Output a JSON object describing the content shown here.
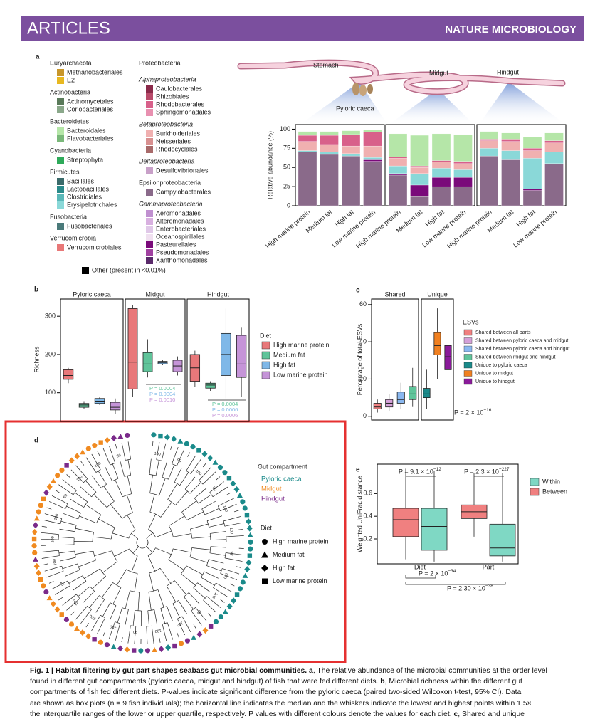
{
  "header": {
    "left": "ARTICLES",
    "right": "NATURE MICROBIOLOGY"
  },
  "panel_letters": [
    "a",
    "b",
    "c",
    "d",
    "e"
  ],
  "panel_a": {
    "diagram_labels": [
      "Stomach",
      "Pyloric caeca",
      "Midgut",
      "Hindgut"
    ],
    "legend": {
      "columns": [
        [
          {
            "name": "Euryarchaeota",
            "italic": false,
            "items": [
              {
                "name": "Methanobacteriales",
                "color": "#c8962a"
              },
              {
                "name": "E2",
                "color": "#e8b820"
              }
            ]
          },
          {
            "name": "Actinobacteria",
            "italic": false,
            "items": [
              {
                "name": "Actinomycetales",
                "color": "#5a7a5a"
              },
              {
                "name": "Coriobacteriales",
                "color": "#8aa88a"
              }
            ]
          },
          {
            "name": "Bacteroidetes",
            "italic": false,
            "items": [
              {
                "name": "Bacteroidales",
                "color": "#b5e6a8"
              },
              {
                "name": "Flavobacteriales",
                "color": "#7ab87a"
              }
            ]
          },
          {
            "name": "Cyanobacteria",
            "italic": false,
            "items": [
              {
                "name": "Streptophyta",
                "color": "#2eaa5a"
              }
            ]
          },
          {
            "name": "Firmicutes",
            "italic": false,
            "items": [
              {
                "name": "Bacillales",
                "color": "#3a6a6a"
              },
              {
                "name": "Lactobacillales",
                "color": "#2a8a8a"
              },
              {
                "name": "Clostridiales",
                "color": "#5ab8b8"
              },
              {
                "name": "Erysipelotrichales",
                "color": "#8ad8d8"
              }
            ]
          },
          {
            "name": "Fusobacteria",
            "italic": false,
            "items": [
              {
                "name": "Fusobacteriales",
                "color": "#4a7a7a"
              }
            ]
          },
          {
            "name": "Verrucomicrobia",
            "italic": false,
            "items": [
              {
                "name": "Verrucomicrobiales",
                "color": "#e87878"
              }
            ]
          }
        ],
        [
          {
            "name": "Proteobacteria",
            "italic": false,
            "items": []
          },
          {
            "name": "Alphaproteobacteria",
            "italic": true,
            "items": [
              {
                "name": "Caulobacterales",
                "color": "#8a2a4a"
              },
              {
                "name": "Rhizobiales",
                "color": "#b84a6a"
              },
              {
                "name": "Rhodobacterales",
                "color": "#d8608a"
              },
              {
                "name": "Sphingomonadales",
                "color": "#e890b0"
              }
            ]
          },
          {
            "name": "Betaproteobacteria",
            "italic": true,
            "items": [
              {
                "name": "Burkholderiales",
                "color": "#f0b0b0"
              },
              {
                "name": "Neisseriales",
                "color": "#d89090"
              },
              {
                "name": "Rhodocyclales",
                "color": "#a86a6a"
              }
            ]
          },
          {
            "name": "Deltaproteobacteria",
            "italic": true,
            "items": [
              {
                "name": "Desulfovibrionales",
                "color": "#c8a0c8"
              }
            ]
          },
          {
            "name": "Epsilonproteobacteria",
            "italic": false,
            "items": [
              {
                "name": "Campylobacterales",
                "color": "#8a6a8a"
              }
            ]
          },
          {
            "name": "Gammaproteobacteria",
            "italic": true,
            "items": [
              {
                "name": "Aeromonadales",
                "color": "#c090d0"
              },
              {
                "name": "Alteromonadales",
                "color": "#d8b0e0"
              },
              {
                "name": "Enterobacteriales",
                "color": "#e0c8e8"
              },
              {
                "name": "Oceanospirillales",
                "color": "#f0e0f0"
              },
              {
                "name": "Pasteurellales",
                "color": "#7a0a7a"
              },
              {
                "name": "Pseudomonadales",
                "color": "#a040a0"
              },
              {
                "name": "Xanthomonadales",
                "color": "#5a2a6a"
              }
            ]
          }
        ]
      ],
      "other": {
        "name": "Other (present in <0.01%)",
        "color": "#000000"
      }
    },
    "chart_data": {
      "type": "stacked_bar",
      "ylabel": "Relative abundance (%)",
      "ylim": [
        0,
        106
      ],
      "yticks": [
        0,
        25,
        50,
        75,
        100
      ],
      "categories": [
        "High marine protein",
        "Medium fat",
        "High fat",
        "Low marine protein",
        "High marine protein",
        "Medium fat",
        "High fat",
        "Low marine protein",
        "High marine protein",
        "Medium fat",
        "High fat",
        "Low marine protein"
      ],
      "series": [
        {
          "name": "Campylobacterales",
          "color": "#8a6a8a",
          "values": [
            70,
            67,
            65,
            58,
            40,
            12,
            25,
            25,
            65,
            60,
            20,
            55
          ]
        },
        {
          "name": "Pasteurellales",
          "color": "#7a0a7a",
          "values": [
            0,
            0,
            0,
            2,
            2,
            15,
            12,
            12,
            0,
            0,
            2,
            0
          ]
        },
        {
          "name": "Erysipelotrichales",
          "color": "#8ad8d8",
          "values": [
            2,
            3,
            3,
            3,
            10,
            15,
            12,
            10,
            10,
            12,
            40,
            15
          ]
        },
        {
          "name": "Burkholderiales",
          "color": "#f0b0b0",
          "values": [
            12,
            10,
            10,
            15,
            10,
            8,
            8,
            8,
            10,
            12,
            10,
            12
          ]
        },
        {
          "name": "Rhodobacterales",
          "color": "#d8608a",
          "values": [
            8,
            12,
            15,
            18,
            2,
            2,
            2,
            3,
            2,
            3,
            3,
            3
          ]
        },
        {
          "name": "Bacteroidales",
          "color": "#b5e6a8",
          "values": [
            5,
            5,
            5,
            3,
            30,
            40,
            35,
            35,
            10,
            8,
            15,
            10
          ]
        }
      ]
    }
  },
  "panel_b": {
    "type": "box",
    "facets": [
      "Pyloric caeca",
      "Midgut",
      "Hindgut"
    ],
    "ylabel": "Richness",
    "ylim": [
      25,
      345
    ],
    "yticks": [
      100,
      200,
      300
    ],
    "legend_title": "Diet",
    "series": [
      {
        "name": "High marine protein",
        "color": "#e8787a",
        "median": [
          145,
          180,
          165
        ],
        "q1": [
          135,
          110,
          130
        ],
        "q3": [
          160,
          320,
          200
        ],
        "whisker_low": [
          125,
          90,
          115
        ],
        "whisker_high": [
          165,
          330,
          210
        ]
      },
      {
        "name": "Medium fat",
        "color": "#5fc49a",
        "median": [
          68,
          175,
          120
        ],
        "q1": [
          62,
          155,
          112
        ],
        "q3": [
          72,
          205,
          125
        ],
        "whisker_low": [
          58,
          140,
          105
        ],
        "whisker_high": [
          78,
          240,
          130
        ]
      },
      {
        "name": "High fat",
        "color": "#7fb8e8",
        "median": [
          78,
          178,
          200
        ],
        "q1": [
          72,
          175,
          145
        ],
        "q3": [
          85,
          182,
          255
        ],
        "whisker_low": [
          68,
          172,
          85
        ],
        "whisker_high": [
          90,
          185,
          320
        ]
      },
      {
        "name": "Low marine protein",
        "color": "#c594d8",
        "median": [
          62,
          170,
          175
        ],
        "q1": [
          55,
          155,
          140
        ],
        "q3": [
          75,
          185,
          250
        ],
        "whisker_low": [
          45,
          145,
          90
        ],
        "whisker_high": [
          85,
          195,
          270
        ]
      }
    ],
    "p_values": [
      [
        "P = 0.0004",
        "P = 0.0004",
        "P = 0.0010"
      ],
      [
        "P = 0.0004",
        "P = 0.0006",
        "P = 0.0006"
      ]
    ]
  },
  "panel_c": {
    "type": "box",
    "ylabel": "Percentage of total ESVs",
    "ylim": [
      -2,
      63
    ],
    "yticks": [
      0,
      20,
      40,
      60
    ],
    "legend_title": "ESVs",
    "facets": [
      {
        "name": "Shared",
        "series": [
          {
            "name": "Shared between all parts",
            "color": "#f08080",
            "median": 5,
            "q1": 4,
            "q3": 7,
            "whisker_low": 2,
            "whisker_high": 9
          },
          {
            "name": "Shared between pyloric caeca and midgut",
            "color": "#d4a0d8",
            "median": 7,
            "q1": 5,
            "q3": 9,
            "whisker_low": 3,
            "whisker_high": 12
          },
          {
            "name": "Shared between pyloric caeca and hindgut",
            "color": "#8ab8f0",
            "median": 9,
            "q1": 7,
            "q3": 13,
            "whisker_low": 4,
            "whisker_high": 18
          },
          {
            "name": "Shared between midgut and hindgut",
            "color": "#5fc49a",
            "median": 12,
            "q1": 9,
            "q3": 16,
            "whisker_low": 5,
            "whisker_high": 26
          }
        ]
      },
      {
        "name": "Unique",
        "series": [
          {
            "name": "Unique to pyloric caeca",
            "color": "#1a8a8a",
            "median": 12,
            "q1": 10,
            "q3": 15,
            "whisker_low": 4,
            "whisker_high": 25
          },
          {
            "name": "Unique to midgut",
            "color": "#f08020",
            "median": 38,
            "q1": 33,
            "q3": 45,
            "whisker_low": 20,
            "whisker_high": 58
          },
          {
            "name": "Unique to hindgut",
            "color": "#8a1a9a",
            "median": 32,
            "q1": 25,
            "q3": 38,
            "whisker_low": 15,
            "whisker_high": 55
          }
        ]
      }
    ],
    "p_value": {
      "text": "P = 2 × 10",
      "exp": "−16"
    }
  },
  "panel_d": {
    "legend_compartment_title": "Gut compartment",
    "compartments": [
      {
        "name": "Pyloric caeca",
        "color": "#1a8a8a"
      },
      {
        "name": "Midgut",
        "color": "#f08a20"
      },
      {
        "name": "Hindgut",
        "color": "#7a2a8a"
      }
    ],
    "legend_diet_title": "Diet",
    "diets": [
      "High marine protein",
      "Medium fat",
      "High fat",
      "Low marine protein"
    ],
    "bootstrap_labels": [
      "100",
      "99",
      "100",
      "80",
      "100",
      "100",
      "98",
      "100",
      "100",
      "99",
      "100",
      "100",
      "90",
      "100",
      "100",
      "100",
      "98",
      "100",
      "100",
      "100",
      "99",
      "100",
      "100",
      "80"
    ]
  },
  "panel_e": {
    "type": "box",
    "ylabel": "Weighted UniFrac distance",
    "ylim": [
      -0.02,
      0.86
    ],
    "yticks": [
      0.2,
      0.4,
      0.6
    ],
    "categories": [
      "Diet",
      "Part"
    ],
    "series": [
      {
        "name": "Within",
        "color": "#7fd8c4",
        "median": [
          0.31,
          0.12
        ],
        "q1": [
          0.1,
          0.05
        ],
        "q3": [
          0.47,
          0.33
        ],
        "whisker_low": [
          0.0,
          0.0
        ],
        "whisker_high": [
          0.8,
          0.78
        ]
      },
      {
        "name": "Between",
        "color": "#f08080",
        "median": [
          0.37,
          0.44
        ],
        "q1": [
          0.22,
          0.38
        ],
        "q3": [
          0.47,
          0.5
        ],
        "whisker_low": [
          0.02,
          0.22
        ],
        "whisker_high": [
          0.82,
          0.78
        ]
      }
    ],
    "p_values": [
      {
        "text": "P = 9.1 × 10",
        "exp": "−12"
      },
      {
        "text": "P = 2.3 × 10",
        "exp": "−227"
      },
      {
        "text": "P = 2 × 10",
        "exp": "−34"
      },
      {
        "text": "P = 2.30 × 10",
        "exp": "−38"
      }
    ]
  },
  "caption": {
    "lines": [
      [
        {
          "text": "Fig. 1 | Habitat filtering by gut part shapes seabass gut microbial communities. a",
          "bold": true
        },
        {
          "text": ", The relative abundance of the microbial communities at the order level"
        }
      ],
      [
        {
          "text": "found in different gut compartments (pyloric caeca, midgut and hindgut) of fish that were fed different diets. "
        },
        {
          "text": "b",
          "bold": true
        },
        {
          "text": ", Microbial richness within the different gut"
        }
      ],
      [
        {
          "text": "compartments of fish fed different diets. P-values indicate significant difference from the pyloric caeca (paired two-sided Wilcoxon t-test, 95% CI). Data"
        }
      ],
      [
        {
          "text": "are shown as box plots (n = 9 fish individuals); the horizontal line indicates the median and the whiskers indicate the lowest and highest points within 1.5×"
        }
      ],
      [
        {
          "text": "the interquartile ranges of the lower or upper quartile, respectively. P values with different colours denote the values for each diet. "
        },
        {
          "text": "c",
          "bold": true
        },
        {
          "text": ", Shared and unique"
        }
      ]
    ]
  }
}
